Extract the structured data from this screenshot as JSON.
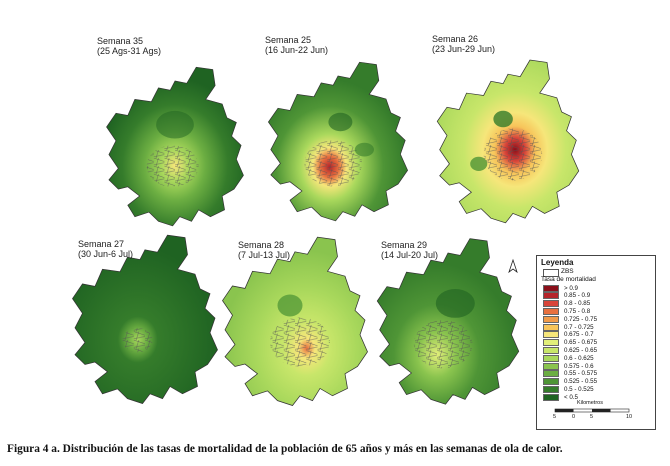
{
  "maps": [
    {
      "title": "Semana 35",
      "dates": "(25 Ags-31 Ags)"
    },
    {
      "title": "Semana 25",
      "dates": "(16 Jun-22 Jun)"
    },
    {
      "title": "Semana 26",
      "dates": "(23 Jun-29 Jun)"
    },
    {
      "title": "Semana 27",
      "dates": "(30 Jun-6 Jul)"
    },
    {
      "title": "Semana 28",
      "dates": "(7 Jul-13 Jul)"
    },
    {
      "title": "Semana 29",
      "dates": "(14 Jul-20 Jul)"
    }
  ],
  "legend": {
    "title": "Leyenda",
    "zbs_label": "ZBS",
    "subtitle": "Tasa de mortalidad",
    "classes": [
      {
        "label": "> 0.9",
        "color": "#8b0f1a"
      },
      {
        "label": "0.85 - 0.9",
        "color": "#b5242a"
      },
      {
        "label": "0.8 - 0.85",
        "color": "#d8453a"
      },
      {
        "label": "0.75 - 0.8",
        "color": "#e8703f"
      },
      {
        "label": "0.725 - 0.75",
        "color": "#f09a4a"
      },
      {
        "label": "0.7 - 0.725",
        "color": "#f7c45a"
      },
      {
        "label": "0.675 - 0.7",
        "color": "#f6e67a"
      },
      {
        "label": "0.65 - 0.675",
        "color": "#e2ef7a"
      },
      {
        "label": "0.625 - 0.65",
        "color": "#c8e66a"
      },
      {
        "label": "0.6 - 0.625",
        "color": "#a9d85c"
      },
      {
        "label": "0.575 - 0.6",
        "color": "#8ac44e"
      },
      {
        "label": "0.55 - 0.575",
        "color": "#6cae42"
      },
      {
        "label": "0.525 - 0.55",
        "color": "#4f9536"
      },
      {
        "label": "0.5 - 0.525",
        "color": "#357c2b"
      },
      {
        "label": "< 0.5",
        "color": "#1f6322"
      }
    ],
    "scale": {
      "unit": "Kilometros",
      "ticks": [
        "5",
        "0",
        "5",
        "10"
      ]
    },
    "north_symbol": "north-arrow-icon"
  },
  "caption": "Figura 4 a. Distribución de las tasas de mortalidad de la población de 65 años y más en las semanas de ola de calor."
}
